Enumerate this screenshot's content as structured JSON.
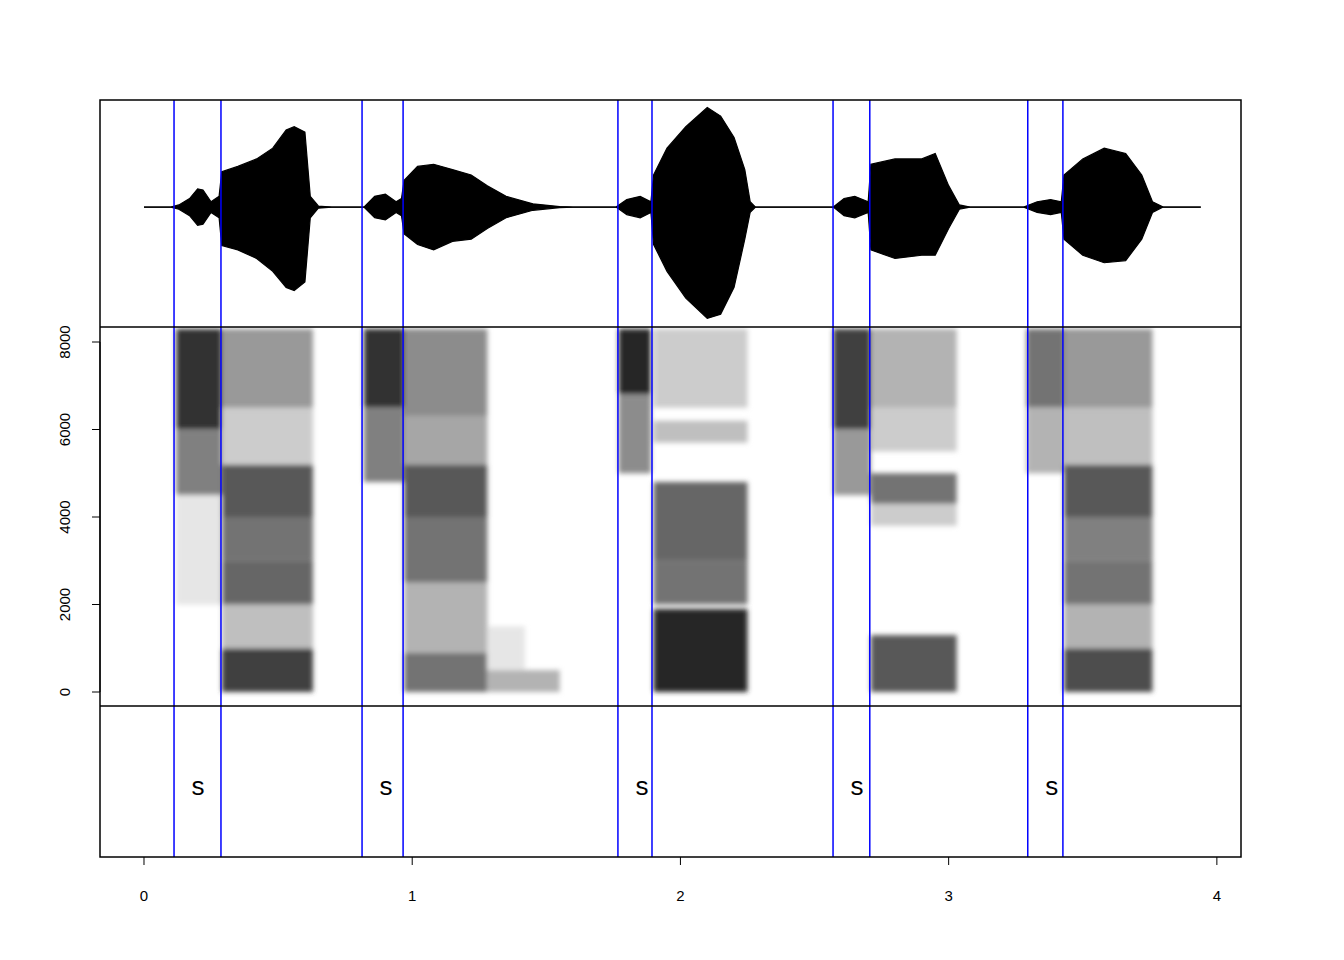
{
  "chart_data": [
    {
      "type": "area",
      "color": "#000000",
      "tick_labels": false,
      "xlim": [
        -0.164,
        4.09
      ],
      "ylim": [
        -1.12,
        1
      ],
      "x": [
        0.0,
        0.1,
        0.13,
        0.17,
        0.2,
        0.22,
        0.25,
        0.28,
        0.29,
        0.35,
        0.42,
        0.48,
        0.53,
        0.56,
        0.6,
        0.62,
        0.65,
        0.7,
        0.82,
        0.86,
        0.9,
        0.94,
        0.96,
        0.97,
        1.02,
        1.08,
        1.15,
        1.22,
        1.28,
        1.35,
        1.45,
        1.55,
        1.6,
        1.76,
        1.8,
        1.85,
        1.89,
        1.9,
        1.95,
        2.02,
        2.1,
        2.15,
        2.2,
        2.24,
        2.26,
        2.28,
        2.57,
        2.61,
        2.65,
        2.7,
        2.71,
        2.8,
        2.9,
        2.95,
        3.0,
        3.04,
        3.08,
        3.28,
        3.33,
        3.38,
        3.42,
        3.43,
        3.5,
        3.58,
        3.66,
        3.72,
        3.76,
        3.8,
        3.94
      ],
      "upper": [
        0,
        0,
        0.02,
        0.08,
        0.17,
        0.16,
        0.05,
        0.1,
        0.33,
        0.38,
        0.45,
        0.55,
        0.72,
        0.75,
        0.7,
        0.1,
        0.01,
        0,
        0,
        0.1,
        0.12,
        0.05,
        0.08,
        0.25,
        0.38,
        0.4,
        0.35,
        0.3,
        0.2,
        0.1,
        0.03,
        0.005,
        0,
        0,
        0.07,
        0.1,
        0.05,
        0.3,
        0.55,
        0.75,
        0.93,
        0.85,
        0.65,
        0.35,
        0.05,
        0,
        0,
        0.08,
        0.1,
        0.05,
        0.4,
        0.45,
        0.45,
        0.5,
        0.2,
        0.02,
        0,
        0,
        0.05,
        0.07,
        0.05,
        0.3,
        0.45,
        0.55,
        0.5,
        0.3,
        0.05,
        0,
        0
      ],
      "lower": [
        0,
        0,
        -0.02,
        -0.08,
        -0.17,
        -0.16,
        -0.05,
        -0.1,
        -0.36,
        -0.4,
        -0.48,
        -0.6,
        -0.75,
        -0.78,
        -0.7,
        -0.1,
        -0.01,
        0,
        0,
        -0.1,
        -0.12,
        -0.05,
        -0.08,
        -0.25,
        -0.35,
        -0.4,
        -0.32,
        -0.3,
        -0.2,
        -0.1,
        -0.03,
        -0.005,
        0,
        0,
        -0.07,
        -0.1,
        -0.05,
        -0.35,
        -0.6,
        -0.85,
        -1.04,
        -1.0,
        -0.75,
        -0.3,
        -0.05,
        0,
        0,
        -0.08,
        -0.1,
        -0.05,
        -0.4,
        -0.48,
        -0.45,
        -0.45,
        -0.2,
        -0.02,
        0,
        0,
        -0.05,
        -0.07,
        -0.05,
        -0.3,
        -0.45,
        -0.52,
        -0.5,
        -0.3,
        -0.05,
        0,
        0
      ]
    },
    {
      "type": "heatmap",
      "tick_labels": "y",
      "xlim": [
        -0.164,
        4.09
      ],
      "ylim": [
        -320,
        8343
      ],
      "yticks": [
        0,
        2000,
        4000,
        6000,
        8000
      ],
      "zlim": [
        0,
        1
      ],
      "cells": [
        {
          "x": [
            0.12,
            0.29
          ],
          "y": [
            6000,
            8300
          ],
          "value": 0.8
        },
        {
          "x": [
            0.12,
            0.29
          ],
          "y": [
            4500,
            6000
          ],
          "value": 0.5
        },
        {
          "x": [
            0.12,
            0.29
          ],
          "y": [
            2000,
            4500
          ],
          "value": 0.1
        },
        {
          "x": [
            0.29,
            0.63
          ],
          "y": [
            0,
            1000
          ],
          "value": 0.75
        },
        {
          "x": [
            0.29,
            0.63
          ],
          "y": [
            1000,
            2000
          ],
          "value": 0.25
        },
        {
          "x": [
            0.29,
            0.63
          ],
          "y": [
            2000,
            3000
          ],
          "value": 0.6
        },
        {
          "x": [
            0.29,
            0.63
          ],
          "y": [
            3000,
            4000
          ],
          "value": 0.55
        },
        {
          "x": [
            0.29,
            0.63
          ],
          "y": [
            4000,
            5200
          ],
          "value": 0.65
        },
        {
          "x": [
            0.29,
            0.63
          ],
          "y": [
            5200,
            6500
          ],
          "value": 0.2
        },
        {
          "x": [
            0.29,
            0.63
          ],
          "y": [
            6500,
            8300
          ],
          "value": 0.4
        },
        {
          "x": [
            0.82,
            0.97
          ],
          "y": [
            6500,
            8300
          ],
          "value": 0.8
        },
        {
          "x": [
            0.82,
            0.97
          ],
          "y": [
            4800,
            6500
          ],
          "value": 0.5
        },
        {
          "x": [
            0.97,
            1.28
          ],
          "y": [
            0,
            900
          ],
          "value": 0.55
        },
        {
          "x": [
            0.97,
            1.28
          ],
          "y": [
            900,
            2500
          ],
          "value": 0.3
        },
        {
          "x": [
            0.97,
            1.28
          ],
          "y": [
            2500,
            4000
          ],
          "value": 0.55
        },
        {
          "x": [
            0.97,
            1.28
          ],
          "y": [
            4000,
            5200
          ],
          "value": 0.65
        },
        {
          "x": [
            0.97,
            1.28
          ],
          "y": [
            5200,
            6300
          ],
          "value": 0.35
        },
        {
          "x": [
            0.97,
            1.28
          ],
          "y": [
            6300,
            8300
          ],
          "value": 0.45
        },
        {
          "x": [
            1.28,
            1.55
          ],
          "y": [
            0,
            500
          ],
          "value": 0.3
        },
        {
          "x": [
            1.28,
            1.42
          ],
          "y": [
            500,
            1500
          ],
          "value": 0.1
        },
        {
          "x": [
            1.77,
            1.89
          ],
          "y": [
            6800,
            8300
          ],
          "value": 0.85
        },
        {
          "x": [
            1.77,
            1.89
          ],
          "y": [
            5000,
            6800
          ],
          "value": 0.45
        },
        {
          "x": [
            1.9,
            2.25
          ],
          "y": [
            0,
            1900
          ],
          "value": 0.85
        },
        {
          "x": [
            1.9,
            2.25
          ],
          "y": [
            2000,
            3000
          ],
          "value": 0.55
        },
        {
          "x": [
            1.9,
            2.25
          ],
          "y": [
            3000,
            4800
          ],
          "value": 0.6
        },
        {
          "x": [
            1.9,
            2.25
          ],
          "y": [
            5700,
            6200
          ],
          "value": 0.25
        },
        {
          "x": [
            1.9,
            2.25
          ],
          "y": [
            6500,
            8300
          ],
          "value": 0.2
        },
        {
          "x": [
            2.57,
            2.71
          ],
          "y": [
            6000,
            8300
          ],
          "value": 0.75
        },
        {
          "x": [
            2.57,
            2.71
          ],
          "y": [
            4500,
            6000
          ],
          "value": 0.4
        },
        {
          "x": [
            2.71,
            3.03
          ],
          "y": [
            0,
            1300
          ],
          "value": 0.65
        },
        {
          "x": [
            2.71,
            3.03
          ],
          "y": [
            3800,
            4300
          ],
          "value": 0.2
        },
        {
          "x": [
            2.71,
            3.03
          ],
          "y": [
            4300,
            5000
          ],
          "value": 0.55
        },
        {
          "x": [
            2.71,
            3.03
          ],
          "y": [
            5500,
            6500
          ],
          "value": 0.2
        },
        {
          "x": [
            2.71,
            3.03
          ],
          "y": [
            6500,
            8300
          ],
          "value": 0.3
        },
        {
          "x": [
            3.29,
            3.43
          ],
          "y": [
            6500,
            8300
          ],
          "value": 0.55
        },
        {
          "x": [
            3.29,
            3.43
          ],
          "y": [
            5000,
            6500
          ],
          "value": 0.3
        },
        {
          "x": [
            3.43,
            3.76
          ],
          "y": [
            0,
            1000
          ],
          "value": 0.7
        },
        {
          "x": [
            3.43,
            3.76
          ],
          "y": [
            1000,
            2000
          ],
          "value": 0.3
        },
        {
          "x": [
            3.43,
            3.76
          ],
          "y": [
            2000,
            3000
          ],
          "value": 0.55
        },
        {
          "x": [
            3.43,
            3.76
          ],
          "y": [
            3000,
            4000
          ],
          "value": 0.5
        },
        {
          "x": [
            3.43,
            3.76
          ],
          "y": [
            4000,
            5200
          ],
          "value": 0.65
        },
        {
          "x": [
            3.43,
            3.76
          ],
          "y": [
            5200,
            6500
          ],
          "value": 0.25
        },
        {
          "x": [
            3.43,
            3.76
          ],
          "y": [
            6500,
            8300
          ],
          "value": 0.4
        }
      ]
    },
    {
      "type": "segments",
      "color": "#0000ff",
      "xlim": [
        -0.164,
        4.09
      ],
      "xticks": [
        0,
        1,
        2,
        3,
        4
      ],
      "segments": [
        {
          "start": 0.112,
          "end": 0.287,
          "label": "s"
        },
        {
          "start": 0.813,
          "end": 0.966,
          "label": "s"
        },
        {
          "start": 1.767,
          "end": 1.894,
          "label": "s"
        },
        {
          "start": 2.569,
          "end": 2.706,
          "label": "s"
        },
        {
          "start": 3.295,
          "end": 3.426,
          "label": "s"
        }
      ]
    }
  ]
}
